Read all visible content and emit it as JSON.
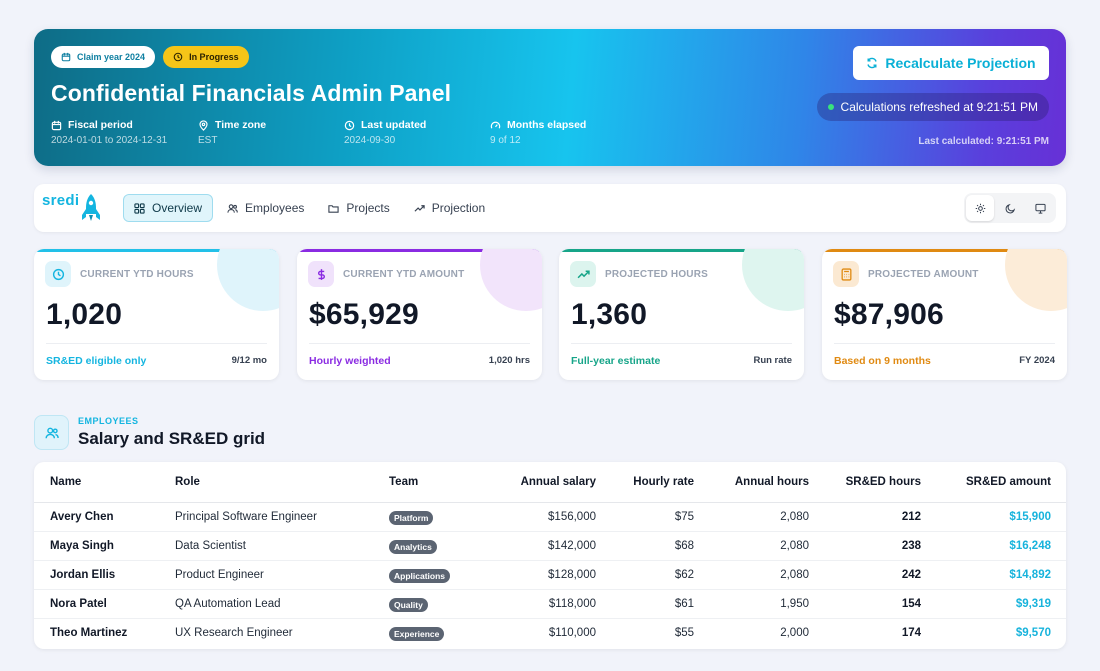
{
  "hero": {
    "claim_year": "Claim year 2024",
    "status": "In Progress",
    "title": "Confidential Financials Admin Panel",
    "meta": [
      {
        "label": "Fiscal period",
        "value": "2024-01-01 to 2024-12-31",
        "icon": "calendar-icon"
      },
      {
        "label": "Time zone",
        "value": "EST",
        "icon": "location-pin-icon"
      },
      {
        "label": "Last updated",
        "value": "2024-09-30",
        "icon": "clock-icon"
      },
      {
        "label": "Months elapsed",
        "value": "9 of 12",
        "icon": "gauge-icon"
      }
    ],
    "recalc_label": "Recalculate Projection",
    "refreshed": "Calculations refreshed at 9:21:51 PM",
    "last_calculated": "Last calculated: 9:21:51 PM"
  },
  "nav": {
    "logo": "sredi",
    "tabs": [
      {
        "label": "Overview",
        "icon": "grid-icon",
        "active": true
      },
      {
        "label": "Employees",
        "icon": "users-icon",
        "active": false
      },
      {
        "label": "Projects",
        "icon": "folder-icon",
        "active": false
      },
      {
        "label": "Projection",
        "icon": "trend-up-icon",
        "active": false
      }
    ],
    "theme": [
      "sun-icon",
      "moon-icon",
      "monitor-icon"
    ]
  },
  "cards": [
    {
      "title": "CURRENT YTD HOURS",
      "value": "1,020",
      "foot": "SR&ED eligible only",
      "side": "9/12 mo",
      "color": "#22c0e8",
      "icon": "clock-icon"
    },
    {
      "title": "CURRENT YTD AMOUNT",
      "value": "$65,929",
      "foot": "Hourly weighted",
      "side": "1,020 hrs",
      "color": "#8a2be2",
      "icon": "dollar-icon"
    },
    {
      "title": "PROJECTED HOURS",
      "value": "1,360",
      "foot": "Full-year estimate",
      "side": "Run rate",
      "color": "#17a589",
      "icon": "trend-up-icon"
    },
    {
      "title": "PROJECTED AMOUNT",
      "value": "$87,906",
      "foot": "Based on 9 months",
      "side": "FY 2024",
      "color": "#e08a12",
      "icon": "calculator-icon"
    }
  ],
  "section": {
    "kicker": "EMPLOYEES",
    "title": "Salary and SR&ED grid"
  },
  "table": {
    "headers": [
      "Name",
      "Role",
      "Team",
      "Annual salary",
      "Hourly rate",
      "Annual hours",
      "SR&ED hours",
      "SR&ED amount"
    ],
    "rows": [
      {
        "name": "Avery Chen",
        "role": "Principal Software Engineer",
        "team": "Platform",
        "salary": "$156,000",
        "rate": "$75",
        "hours": "2,080",
        "sred_hours": "212",
        "sred_amount": "$15,900"
      },
      {
        "name": "Maya Singh",
        "role": "Data Scientist",
        "team": "Analytics",
        "salary": "$142,000",
        "rate": "$68",
        "hours": "2,080",
        "sred_hours": "238",
        "sred_amount": "$16,248"
      },
      {
        "name": "Jordan Ellis",
        "role": "Product Engineer",
        "team": "Applications",
        "salary": "$128,000",
        "rate": "$62",
        "hours": "2,080",
        "sred_hours": "242",
        "sred_amount": "$14,892"
      },
      {
        "name": "Nora Patel",
        "role": "QA Automation Lead",
        "team": "Quality",
        "salary": "$118,000",
        "rate": "$61",
        "hours": "1,950",
        "sred_hours": "154",
        "sred_amount": "$9,319"
      },
      {
        "name": "Theo Martinez",
        "role": "UX Research Engineer",
        "team": "Experience",
        "salary": "$110,000",
        "rate": "$55",
        "hours": "2,000",
        "sred_hours": "174",
        "sred_amount": "$9,570"
      }
    ]
  }
}
